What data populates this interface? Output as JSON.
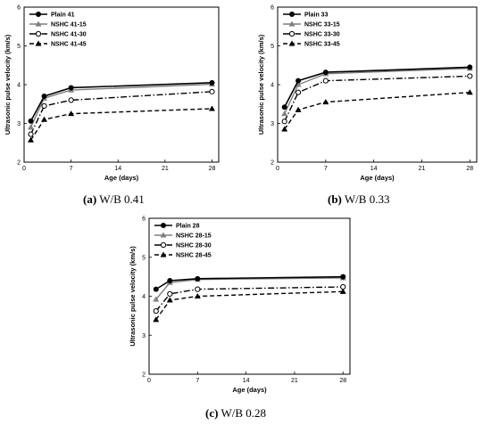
{
  "chart_data": [
    {
      "type": "line",
      "caption_letter": "(a)",
      "caption_text": "W/B 0.41",
      "xlabel": "Age (days)",
      "ylabel": "Ultrasonic pulse velocity (km/s)",
      "xlim": [
        0,
        29
      ],
      "ylim": [
        2,
        6
      ],
      "xticks": [
        "0",
        "7",
        "14",
        "21",
        "28"
      ],
      "yticks": [
        "2",
        "3",
        "4",
        "5",
        "6"
      ],
      "grid": false,
      "legend": "top-left",
      "x": [
        1,
        3,
        7,
        28
      ],
      "series": [
        {
          "name": "Plain 41",
          "values": [
            3.06,
            3.7,
            3.92,
            4.05
          ]
        },
        {
          "name": "NSHC 41-15",
          "values": [
            2.9,
            3.65,
            3.86,
            4.01
          ]
        },
        {
          "name": "NSHC 41-30",
          "values": [
            2.72,
            3.45,
            3.6,
            3.82
          ]
        },
        {
          "name": "NSHC 41-45",
          "values": [
            2.57,
            3.1,
            3.25,
            3.38
          ]
        }
      ]
    },
    {
      "type": "line",
      "caption_letter": "(b)",
      "caption_text": "W/B 0.33",
      "xlabel": "Age (days)",
      "ylabel": "Ultrasonic pulse velocity (km/s)",
      "xlim": [
        0,
        29
      ],
      "ylim": [
        2,
        6
      ],
      "xticks": [
        "0",
        "7",
        "14",
        "21",
        "28"
      ],
      "yticks": [
        "2",
        "3",
        "4",
        "5",
        "6"
      ],
      "grid": false,
      "legend": "top-left",
      "x": [
        1,
        3,
        7,
        28
      ],
      "series": [
        {
          "name": "Plain 33",
          "values": [
            3.42,
            4.1,
            4.32,
            4.45
          ]
        },
        {
          "name": "NSHC 33-15",
          "values": [
            3.25,
            4.0,
            4.28,
            4.42
          ]
        },
        {
          "name": "NSHC 33-30",
          "values": [
            3.05,
            3.8,
            4.1,
            4.22
          ]
        },
        {
          "name": "NSHC 33-45",
          "values": [
            2.85,
            3.35,
            3.55,
            3.8
          ]
        }
      ]
    },
    {
      "type": "line",
      "caption_letter": "(c)",
      "caption_text": "W/B 0.28",
      "xlabel": "Age (days)",
      "ylabel": "Ultrasonic pulse velocity (km/s)",
      "xlim": [
        0,
        29
      ],
      "ylim": [
        2,
        6
      ],
      "xticks": [
        "0",
        "7",
        "14",
        "21",
        "28"
      ],
      "yticks": [
        "2",
        "3",
        "4",
        "5",
        "6"
      ],
      "grid": false,
      "legend": "top-left",
      "x": [
        1,
        3,
        7,
        28
      ],
      "series": [
        {
          "name": "Plain 28",
          "values": [
            4.18,
            4.4,
            4.45,
            4.5
          ]
        },
        {
          "name": "NSHC 28-15",
          "values": [
            3.92,
            4.35,
            4.43,
            4.47
          ]
        },
        {
          "name": "NSHC 28-30",
          "values": [
            3.62,
            4.06,
            4.18,
            4.24
          ]
        },
        {
          "name": "NSHC 28-45",
          "values": [
            3.4,
            3.9,
            4.0,
            4.12
          ]
        }
      ]
    }
  ],
  "style": {
    "series_colors": [
      "#000000",
      "#7f7f7f",
      "#000000",
      "#000000"
    ],
    "series_markers": [
      "circle-filled",
      "triangle-filled",
      "circle-open",
      "triangle-filled"
    ],
    "series_dashes": [
      "solid",
      "solid",
      "dash-dot",
      "dashed"
    ]
  }
}
